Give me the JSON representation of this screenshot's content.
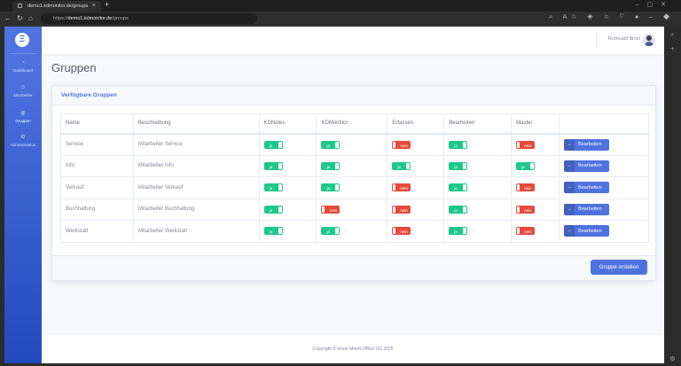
{
  "browser": {
    "tab_title": "demo1.kdmonitor.de/groups",
    "url_prefix": "https://",
    "url_host": "demo1.kdmonitor.de",
    "url_path": "/groups"
  },
  "sidebar": {
    "logo": "Ξ",
    "items": [
      {
        "label": "Dashboard",
        "icon": "tachometer-icon"
      },
      {
        "label": "Mitarbeiter",
        "icon": "users-icon"
      },
      {
        "label": "Gruppen",
        "icon": "group-icon"
      },
      {
        "label": "Administration",
        "icon": "cogs-icon"
      }
    ]
  },
  "topbar": {
    "user_name": "Romuald Brozi"
  },
  "page": {
    "title": "Gruppen"
  },
  "card": {
    "title": "Verfügbare Gruppen",
    "create_button": "Gruppe erstellen"
  },
  "table": {
    "headers": [
      "Name",
      "Beschreibung",
      "KDNotes",
      "KDMontitor",
      "Erfassen",
      "Bearbeiten",
      "Master",
      ""
    ],
    "edit_label": "Bearbeiten",
    "rows": [
      {
        "name": "Service",
        "desc": "Mitarbeiter Service",
        "kdnotes": "ja",
        "kdmonitor": "ja",
        "erfassen": "nein",
        "bearbeiten": "ja",
        "master": "nein"
      },
      {
        "name": "Info",
        "desc": "Mitarbeiter Info",
        "kdnotes": "ja",
        "kdmonitor": "ja",
        "erfassen": "ja",
        "bearbeiten": "ja",
        "master": "ja"
      },
      {
        "name": "Verkauf",
        "desc": "Mitarbeiter Verkauf",
        "kdnotes": "ja",
        "kdmonitor": "ja",
        "erfassen": "nein",
        "bearbeiten": "ja",
        "master": "nein"
      },
      {
        "name": "Buchhaltung",
        "desc": "Mitarbeiter Buchhaltung",
        "kdnotes": "ja",
        "kdmonitor": "nein",
        "erfassen": "nein",
        "bearbeiten": "ja",
        "master": "nein"
      },
      {
        "name": "Werkstatt",
        "desc": "Mitarbeiter Werkstatt",
        "kdnotes": "ja",
        "kdmonitor": "ja",
        "erfassen": "nein",
        "bearbeiten": "ja",
        "master": "nein"
      }
    ]
  },
  "footer": {
    "copyright": "Copyright © Immo Meets Office UG 2025"
  },
  "colors": {
    "primary": "#4e73df",
    "success": "#1cc88a",
    "danger": "#e74a3b"
  }
}
